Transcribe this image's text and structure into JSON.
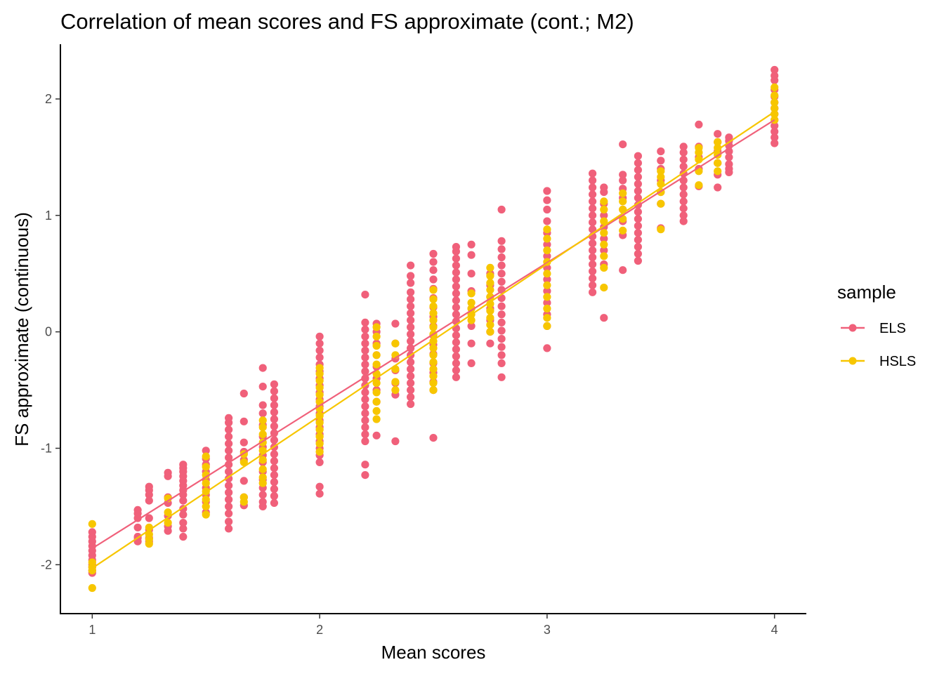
{
  "chart_data": {
    "type": "scatter",
    "title": "Correlation of mean scores and FS approximate (cont.; M2)",
    "xlabel": "Mean scores",
    "ylabel": "FS approximate (continuous)",
    "xlim": [
      0.86,
      4.14
    ],
    "ylim": [
      -2.42,
      2.47
    ],
    "x_ticks": [
      1,
      2,
      3,
      4
    ],
    "y_ticks": [
      -2,
      -1,
      0,
      1,
      2
    ],
    "grid": false,
    "legend": {
      "title": "sample",
      "position": "right"
    },
    "series": [
      {
        "name": "ELS",
        "color": "#F0607A",
        "fit_line": {
          "x": [
            1,
            4
          ],
          "y": [
            -1.86,
            1.82
          ]
        },
        "columns": [
          {
            "x": 1.0,
            "values": [
              -2.07,
              -2.05,
              -2.02,
              -2.0,
              -1.96,
              -1.92,
              -1.88,
              -1.84,
              -1.8,
              -1.76,
              -1.72
            ]
          },
          {
            "x": 1.2,
            "values": [
              -1.8,
              -1.77,
              -1.76,
              -1.68,
              -1.6,
              -1.56,
              -1.53
            ]
          },
          {
            "x": 1.25,
            "values": [
              -1.8,
              -1.77,
              -1.7,
              -1.6,
              -1.45,
              -1.4,
              -1.36,
              -1.33
            ]
          },
          {
            "x": 1.333,
            "values": [
              -1.71,
              -1.67,
              -1.58,
              -1.47,
              -1.42,
              -1.24,
              -1.21
            ]
          },
          {
            "x": 1.4,
            "values": [
              -1.76,
              -1.69,
              -1.64,
              -1.57,
              -1.52,
              -1.45,
              -1.4,
              -1.36,
              -1.32,
              -1.28,
              -1.24,
              -1.2,
              -1.17,
              -1.14
            ]
          },
          {
            "x": 1.5,
            "values": [
              -1.55,
              -1.46,
              -1.4,
              -1.34,
              -1.27,
              -1.2,
              -1.14,
              -1.09,
              -1.02
            ]
          },
          {
            "x": 1.6,
            "values": [
              -1.69,
              -1.63,
              -1.56,
              -1.5,
              -1.44,
              -1.38,
              -1.32,
              -1.26,
              -1.2,
              -1.14,
              -1.08,
              -1.02,
              -0.96,
              -0.9,
              -0.84,
              -0.78,
              -0.74
            ]
          },
          {
            "x": 1.667,
            "values": [
              -1.49,
              -1.42,
              -1.28,
              -1.1,
              -1.03,
              -0.95,
              -0.77,
              -0.53
            ]
          },
          {
            "x": 1.75,
            "values": [
              -1.5,
              -1.46,
              -1.4,
              -1.34,
              -1.27,
              -1.2,
              -1.12,
              -1.06,
              -0.99,
              -0.9,
              -0.8,
              -0.7,
              -0.63,
              -0.47,
              -0.31
            ]
          },
          {
            "x": 1.8,
            "values": [
              -1.47,
              -1.41,
              -1.35,
              -1.29,
              -1.23,
              -1.17,
              -1.11,
              -1.05,
              -0.99,
              -0.93,
              -0.87,
              -0.81,
              -0.75,
              -0.69,
              -0.63,
              -0.57,
              -0.51,
              -0.45
            ]
          },
          {
            "x": 2.0,
            "values": [
              -1.39,
              -1.33,
              -1.12,
              -1.06,
              -1.0,
              -0.94,
              -0.88,
              -0.82,
              -0.76,
              -0.7,
              -0.64,
              -0.58,
              -0.52,
              -0.46,
              -0.4,
              -0.34,
              -0.28,
              -0.22,
              -0.16,
              -0.1,
              -0.04
            ]
          },
          {
            "x": 2.2,
            "values": [
              -1.23,
              -1.14,
              -0.94,
              -0.88,
              -0.82,
              -0.76,
              -0.7,
              -0.64,
              -0.58,
              -0.52,
              -0.46,
              -0.4,
              -0.34,
              -0.28,
              -0.22,
              -0.16,
              -0.1,
              -0.04,
              0.02,
              0.08,
              0.32
            ]
          },
          {
            "x": 2.25,
            "values": [
              -0.89,
              -0.6,
              -0.5,
              -0.4,
              -0.3,
              -0.2,
              -0.1,
              0.0,
              0.07
            ]
          },
          {
            "x": 2.333,
            "values": [
              -0.94,
              -0.54,
              -0.44,
              -0.33,
              -0.23,
              -0.1,
              0.07
            ]
          },
          {
            "x": 2.4,
            "values": [
              -0.62,
              -0.56,
              -0.5,
              -0.44,
              -0.38,
              -0.32,
              -0.26,
              -0.2,
              -0.14,
              -0.08,
              -0.02,
              0.04,
              0.1,
              0.16,
              0.22,
              0.28,
              0.34,
              0.42,
              0.48,
              0.57
            ]
          },
          {
            "x": 2.5,
            "values": [
              -0.91,
              -0.5,
              -0.43,
              -0.35,
              -0.27,
              -0.19,
              -0.11,
              -0.03,
              0.05,
              0.13,
              0.21,
              0.29,
              0.37,
              0.45,
              0.53,
              0.6,
              0.67
            ]
          },
          {
            "x": 2.6,
            "values": [
              -0.39,
              -0.33,
              -0.27,
              -0.21,
              -0.15,
              -0.09,
              -0.03,
              0.03,
              0.09,
              0.15,
              0.21,
              0.27,
              0.33,
              0.39,
              0.45,
              0.51,
              0.57,
              0.63,
              0.69,
              0.73
            ]
          },
          {
            "x": 2.667,
            "values": [
              -0.27,
              -0.1,
              0.05,
              0.2,
              0.35,
              0.5,
              0.66,
              0.75
            ]
          },
          {
            "x": 2.75,
            "values": [
              -0.1,
              0.0,
              0.1,
              0.2,
              0.3,
              0.4,
              0.5
            ]
          },
          {
            "x": 2.8,
            "values": [
              -0.39,
              -0.27,
              -0.2,
              -0.13,
              -0.06,
              0.01,
              0.08,
              0.15,
              0.22,
              0.29,
              0.36,
              0.43,
              0.5,
              0.57,
              0.64,
              0.71,
              0.78,
              1.05
            ]
          },
          {
            "x": 3.0,
            "values": [
              -0.14,
              0.05,
              0.15,
              0.25,
              0.35,
              0.45,
              0.55,
              0.65,
              0.75,
              0.85,
              0.95,
              1.05,
              1.13,
              1.21
            ]
          },
          {
            "x": 3.2,
            "values": [
              0.34,
              0.4,
              0.46,
              0.52,
              0.58,
              0.64,
              0.7,
              0.76,
              0.82,
              0.88,
              0.94,
              1.0,
              1.06,
              1.12,
              1.18,
              1.24,
              1.3,
              1.36
            ]
          },
          {
            "x": 3.25,
            "values": [
              0.12,
              0.58,
              0.7,
              0.8,
              0.9,
              1.0,
              1.1,
              1.2,
              1.24
            ]
          },
          {
            "x": 3.333,
            "values": [
              0.53,
              0.83,
              0.95,
              1.05,
              1.15,
              1.23,
              1.3,
              1.35,
              1.61
            ]
          },
          {
            "x": 3.4,
            "values": [
              0.61,
              0.67,
              0.73,
              0.79,
              0.85,
              0.91,
              0.97,
              1.03,
              1.09,
              1.15,
              1.21,
              1.27,
              1.33,
              1.39,
              1.45,
              1.51
            ]
          },
          {
            "x": 3.5,
            "values": [
              0.89,
              1.1,
              1.2,
              1.3,
              1.4,
              1.47,
              1.55
            ]
          },
          {
            "x": 3.6,
            "values": [
              0.95,
              1.0,
              1.06,
              1.12,
              1.18,
              1.24,
              1.3,
              1.36,
              1.42,
              1.48,
              1.54,
              1.59
            ]
          },
          {
            "x": 3.667,
            "values": [
              1.25,
              1.4,
              1.5,
              1.59,
              1.78
            ]
          },
          {
            "x": 3.75,
            "values": [
              1.24,
              1.35,
              1.45,
              1.55,
              1.63,
              1.7
            ]
          },
          {
            "x": 3.8,
            "values": [
              1.37,
              1.4,
              1.44,
              1.5,
              1.55,
              1.6,
              1.64,
              1.67
            ]
          },
          {
            "x": 4.0,
            "values": [
              1.62,
              1.67,
              1.72,
              1.77,
              1.82,
              1.87,
              1.92,
              1.97,
              2.02,
              2.08,
              2.16,
              2.2,
              2.25
            ]
          }
        ]
      },
      {
        "name": "HSLS",
        "color": "#F7C600",
        "fit_line": {
          "x": [
            1,
            4
          ],
          "y": [
            -2.03,
            1.89
          ]
        },
        "columns": [
          {
            "x": 1.0,
            "values": [
              -2.2,
              -2.05,
              -2.02,
              -1.98,
              -1.65
            ]
          },
          {
            "x": 1.25,
            "values": [
              -1.82,
              -1.78,
              -1.74,
              -1.68
            ]
          },
          {
            "x": 1.333,
            "values": [
              -1.64,
              -1.55,
              -1.43
            ]
          },
          {
            "x": 1.5,
            "values": [
              -1.57,
              -1.5,
              -1.44,
              -1.37,
              -1.3,
              -1.23,
              -1.16,
              -1.07
            ]
          },
          {
            "x": 1.667,
            "values": [
              -1.46,
              -1.42,
              -1.12,
              -1.05
            ]
          },
          {
            "x": 1.75,
            "values": [
              -1.3,
              -1.25,
              -1.18,
              -1.1,
              -1.02,
              -0.95,
              -0.88,
              -0.82,
              -0.76
            ]
          },
          {
            "x": 2.0,
            "values": [
              -1.03,
              -0.96,
              -0.9,
              -0.84,
              -0.78,
              -0.72,
              -0.66,
              -0.6,
              -0.54,
              -0.48,
              -0.42,
              -0.36,
              -0.31
            ]
          },
          {
            "x": 2.25,
            "values": [
              -0.75,
              -0.68,
              -0.6,
              -0.52,
              -0.44,
              -0.36,
              -0.28,
              -0.2,
              -0.12,
              -0.04,
              0.04
            ]
          },
          {
            "x": 2.333,
            "values": [
              -0.5,
              -0.43,
              -0.32,
              -0.2,
              -0.1
            ]
          },
          {
            "x": 2.5,
            "values": [
              -0.5,
              -0.44,
              -0.38,
              -0.32,
              -0.26,
              -0.2,
              -0.14,
              -0.08,
              -0.02,
              0.04,
              0.1,
              0.16,
              0.22,
              0.28,
              0.36
            ]
          },
          {
            "x": 2.667,
            "values": [
              0.1,
              0.15,
              0.2,
              0.25,
              0.33
            ]
          },
          {
            "x": 2.75,
            "values": [
              0.0,
              0.06,
              0.12,
              0.18,
              0.24,
              0.3,
              0.36,
              0.42,
              0.48,
              0.55
            ]
          },
          {
            "x": 3.0,
            "values": [
              0.05,
              0.12,
              0.2,
              0.3,
              0.4,
              0.5,
              0.6,
              0.7,
              0.8,
              0.88
            ]
          },
          {
            "x": 3.25,
            "values": [
              0.38,
              0.55,
              0.65,
              0.75,
              0.85,
              0.95,
              1.05,
              1.12
            ]
          },
          {
            "x": 3.333,
            "values": [
              0.87,
              0.97,
              1.05,
              1.12,
              1.19
            ]
          },
          {
            "x": 3.5,
            "values": [
              0.88,
              1.1,
              1.2,
              1.27,
              1.33,
              1.38
            ]
          },
          {
            "x": 3.667,
            "values": [
              1.26,
              1.38,
              1.48,
              1.54,
              1.58
            ]
          },
          {
            "x": 3.75,
            "values": [
              1.38,
              1.45,
              1.52,
              1.58,
              1.63
            ]
          },
          {
            "x": 4.0,
            "values": [
              1.82,
              1.87,
              1.92,
              1.97,
              2.03,
              2.1
            ]
          }
        ]
      }
    ]
  }
}
